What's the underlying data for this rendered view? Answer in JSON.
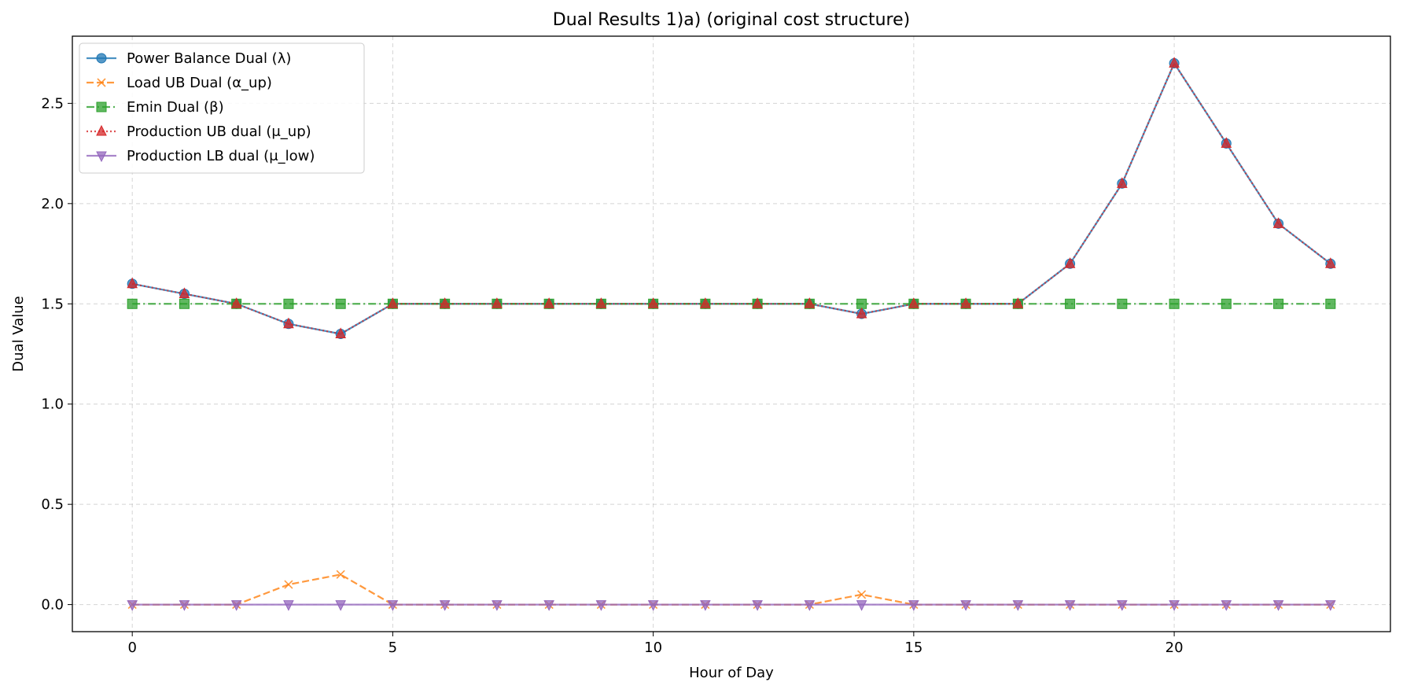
{
  "chart_data": {
    "type": "line",
    "title": "Dual Results 1)a) (original cost structure)",
    "xlabel": "Hour of Day",
    "ylabel": "Dual Value",
    "xlim": [
      -1.15,
      24.15
    ],
    "ylim": [
      -0.135,
      2.835
    ],
    "xticks": [
      0,
      5,
      10,
      15,
      20
    ],
    "yticks": [
      0.0,
      0.5,
      1.0,
      1.5,
      2.0,
      2.5
    ],
    "xtick_labels": [
      "0",
      "5",
      "10",
      "15",
      "20"
    ],
    "ytick_labels": [
      "0.0",
      "0.5",
      "1.0",
      "1.5",
      "2.0",
      "2.5"
    ],
    "grid": true,
    "legend_position": "top-left",
    "x": [
      0,
      1,
      2,
      3,
      4,
      5,
      6,
      7,
      8,
      9,
      10,
      11,
      12,
      13,
      14,
      15,
      16,
      17,
      18,
      19,
      20,
      21,
      22,
      23
    ],
    "series": [
      {
        "name": "Power Balance Dual (λ)",
        "color": "#1f77b4",
        "linestyle": "solid",
        "marker": "circle",
        "values": [
          1.6,
          1.55,
          1.5,
          1.4,
          1.35,
          1.5,
          1.5,
          1.5,
          1.5,
          1.5,
          1.5,
          1.5,
          1.5,
          1.5,
          1.45,
          1.5,
          1.5,
          1.5,
          1.7,
          2.1,
          2.7,
          2.3,
          1.9,
          1.7
        ]
      },
      {
        "name": "Load UB Dual (α_up)",
        "color": "#ff7f0e",
        "linestyle": "dashed",
        "marker": "x",
        "values": [
          0,
          0,
          0,
          0.1,
          0.15,
          0,
          0,
          0,
          0,
          0,
          0,
          0,
          0,
          0,
          0.05,
          0,
          0,
          0,
          0,
          0,
          0,
          0,
          0,
          0
        ]
      },
      {
        "name": "Emin Dual (β)",
        "color": "#2ca02c",
        "linestyle": "dashdot",
        "marker": "square",
        "values": [
          1.5,
          1.5,
          1.5,
          1.5,
          1.5,
          1.5,
          1.5,
          1.5,
          1.5,
          1.5,
          1.5,
          1.5,
          1.5,
          1.5,
          1.5,
          1.5,
          1.5,
          1.5,
          1.5,
          1.5,
          1.5,
          1.5,
          1.5,
          1.5
        ]
      },
      {
        "name": "Production UB dual (μ_up)",
        "color": "#d62728",
        "linestyle": "dotted",
        "marker": "triangle-up",
        "values": [
          1.6,
          1.55,
          1.5,
          1.4,
          1.35,
          1.5,
          1.5,
          1.5,
          1.5,
          1.5,
          1.5,
          1.5,
          1.5,
          1.5,
          1.45,
          1.5,
          1.5,
          1.5,
          1.7,
          2.1,
          2.7,
          2.3,
          1.9,
          1.7
        ]
      },
      {
        "name": "Production LB dual (μ_low)",
        "color": "#9467bd",
        "linestyle": "solid",
        "marker": "triangle-down",
        "values": [
          0,
          0,
          0,
          0,
          0,
          0,
          0,
          0,
          0,
          0,
          0,
          0,
          0,
          0,
          0,
          0,
          0,
          0,
          0,
          0,
          0,
          0,
          0,
          0
        ]
      }
    ]
  }
}
